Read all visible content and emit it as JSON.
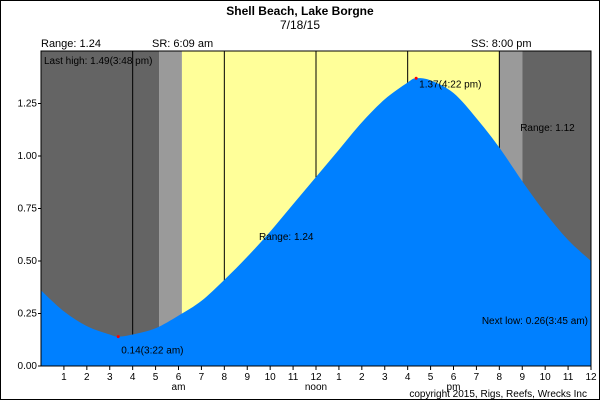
{
  "chart_data": {
    "type": "area",
    "title": "Shell Beach, Lake Borgne",
    "subtitle": "7/18/15",
    "header": {
      "range": "Range:  1.24",
      "sunrise": "SR: 6:09 am",
      "sunset": "SS: 8:00 pm"
    },
    "xlim": [
      0,
      24
    ],
    "ylim": [
      0,
      1.5
    ],
    "x_tick_labels": [
      "1",
      "2",
      "3",
      "4",
      "5",
      "6",
      "7",
      "8",
      "9",
      "10",
      "11",
      "12",
      "1",
      "2",
      "3",
      "4",
      "5",
      "6",
      "7",
      "8",
      "9",
      "10",
      "11",
      "12"
    ],
    "y_tick_values": [
      0.0,
      0.25,
      0.5,
      0.75,
      1.0,
      1.25
    ],
    "y_tick_labels": [
      "0.00",
      "0.25",
      "0.50",
      "0.75",
      "1.00",
      "1.25"
    ],
    "period_labels": [
      "am",
      "noon",
      "pm"
    ],
    "sunrise_hour": 6.15,
    "sunset_hour": 20.0,
    "twilight_minutes": 60,
    "night_color": "#646464",
    "twilight_color": "#9a9a9a",
    "day_color": "#ffff99",
    "water_color": "#0080ff",
    "series": [
      {
        "x": [
          0,
          1,
          2,
          3,
          3.37,
          4,
          5,
          6,
          7,
          8,
          9,
          10,
          11,
          12,
          13,
          14,
          15,
          16,
          16.37,
          17,
          18,
          19,
          20,
          21,
          22,
          23,
          24
        ],
        "values": [
          0.36,
          0.26,
          0.19,
          0.15,
          0.14,
          0.15,
          0.18,
          0.24,
          0.31,
          0.41,
          0.52,
          0.64,
          0.77,
          0.9,
          1.03,
          1.16,
          1.27,
          1.35,
          1.37,
          1.36,
          1.3,
          1.18,
          1.04,
          0.88,
          0.73,
          0.6,
          0.5
        ]
      }
    ],
    "annotations": {
      "last_high": "Last high:  1.49(3:48 pm)",
      "low": "0.14(3:22 am)",
      "high": "1.37(4:22 pm)",
      "range_mid": "Range: 1.24",
      "range_right": "Range: 1.12",
      "next_low": "Next low:  0.26(3:45 am)"
    },
    "copyright": "copyright 2015, Rigs, Reefs, Wrecks Inc",
    "marker_color": "#ff0000"
  }
}
